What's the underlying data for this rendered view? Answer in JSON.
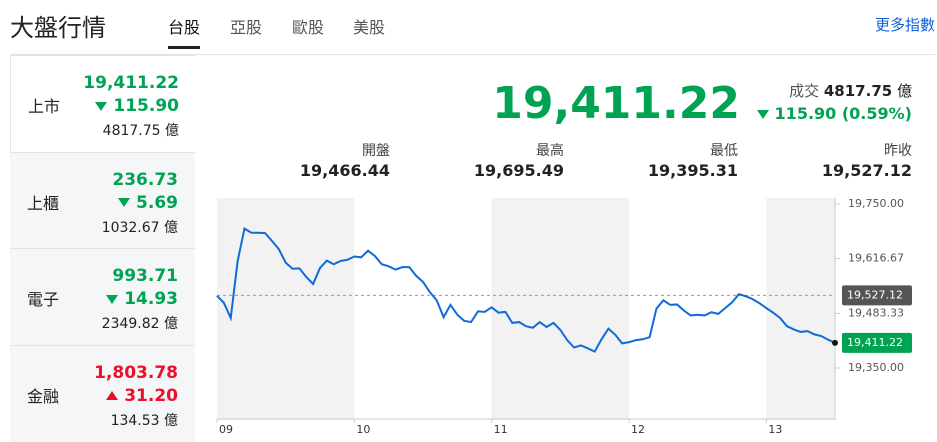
{
  "header": {
    "title": "大盤行情",
    "tabs": [
      "台股",
      "亞股",
      "歐股",
      "美股"
    ],
    "more": "更多指數"
  },
  "markets": [
    {
      "name": "上市",
      "price": "19,411.22",
      "change": "115.90",
      "volume": "4817.75 億",
      "color": "#00a352"
    },
    {
      "name": "上櫃",
      "price": "236.73",
      "change": "5.69",
      "volume": "1032.67 億",
      "color": "#00a352"
    },
    {
      "name": "電子",
      "price": "993.71",
      "change": "14.93",
      "volume": "2349.82 億",
      "color": "#00a352"
    },
    {
      "name": "金融",
      "price": "1,803.78",
      "change": "31.20",
      "volume": "134.53 億",
      "color": "#eb0f29"
    }
  ],
  "summary": {
    "price": "19,411.22",
    "volume_label": "成交",
    "volume": "4817.75",
    "volume_unit": "億",
    "change": "115.90 (0.59%)",
    "stats": [
      {
        "label": "開盤",
        "value": "19,466.44"
      },
      {
        "label": "最高",
        "value": "19,695.49"
      },
      {
        "label": "最低",
        "value": "19,395.31"
      },
      {
        "label": "昨收",
        "value": "19,527.12"
      }
    ]
  },
  "chart_data": {
    "type": "line",
    "color": "#0f6bd8",
    "x": [
      0,
      3,
      6,
      9,
      12,
      15,
      18,
      21,
      24,
      27,
      30,
      33,
      36,
      39,
      42,
      45,
      48,
      51,
      54,
      57,
      60,
      63,
      66,
      69,
      72,
      75,
      78,
      81,
      84,
      87,
      90,
      93,
      96,
      99,
      102,
      105,
      108,
      111,
      114,
      117,
      120,
      123,
      126,
      129,
      132,
      135,
      138,
      141,
      144,
      147,
      150,
      153,
      156,
      159,
      162,
      165,
      168,
      171,
      174,
      177,
      180,
      183,
      186,
      189,
      192,
      195,
      198,
      201,
      204,
      207,
      210,
      213,
      216,
      219,
      222,
      225,
      228,
      231,
      234,
      237,
      240,
      243,
      246,
      249,
      252,
      255,
      258,
      261,
      264,
      267,
      270
    ],
    "values": [
      19526,
      19509,
      19472,
      19610,
      19690,
      19680,
      19680,
      19679,
      19660,
      19640,
      19607,
      19592,
      19593,
      19572,
      19555,
      19594,
      19612,
      19603,
      19611,
      19614,
      19622,
      19620,
      19636,
      19623,
      19603,
      19598,
      19590,
      19596,
      19596,
      19575,
      19560,
      19535,
      19515,
      19474,
      19504,
      19480,
      19465,
      19462,
      19488,
      19487,
      19498,
      19485,
      19487,
      19460,
      19462,
      19452,
      19448,
      19462,
      19450,
      19460,
      19443,
      19418,
      19400,
      19405,
      19398,
      19390,
      19420,
      19446,
      19431,
      19410,
      19413,
      19418,
      19420,
      19425,
      19495,
      19515,
      19504,
      19505,
      19490,
      19478,
      19480,
      19478,
      19486,
      19482,
      19496,
      19510,
      19530,
      19525,
      19518,
      19508,
      19496,
      19485,
      19472,
      19452,
      19444,
      19438,
      19440,
      19432,
      19428,
      19419,
      19411.22
    ],
    "last_label": "19,411.22",
    "reference": {
      "value": 19527.12,
      "label": "19,527.12"
    },
    "xlim": [
      0,
      270
    ],
    "xticks": [
      {
        "value": 0,
        "label": "09"
      },
      {
        "value": 60,
        "label": "10"
      },
      {
        "value": 120,
        "label": "11"
      },
      {
        "value": 180,
        "label": "12"
      },
      {
        "value": 240,
        "label": "13"
      }
    ],
    "ylim": [
      19350,
      19750
    ],
    "yticks": [
      {
        "value": 19750,
        "label": "19,750.00"
      },
      {
        "value": 19616.67,
        "label": "19,616.67"
      },
      {
        "value": 19483.33,
        "label": "19,483.33"
      },
      {
        "value": 19350,
        "label": "19,350.00"
      }
    ]
  }
}
